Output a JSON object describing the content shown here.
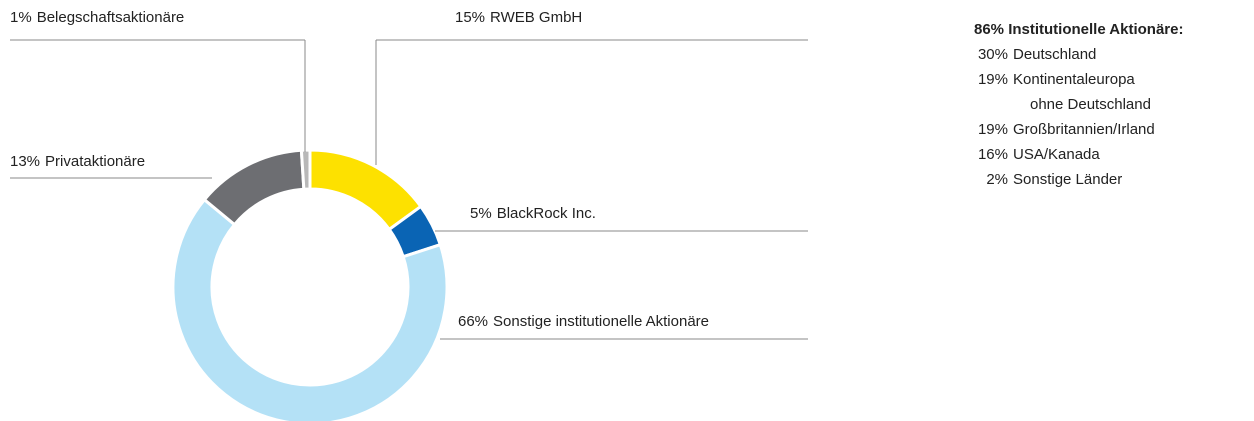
{
  "chart_data": {
    "type": "donut",
    "categories": [
      "RWEB GmbH",
      "BlackRock Inc.",
      "Sonstige institutionelle Aktionäre",
      "Privataktionäre",
      "Belegschaftsaktionäre"
    ],
    "values": [
      15,
      5,
      66,
      13,
      1
    ],
    "value_labels": [
      "15%",
      "5%",
      "66%",
      "13%",
      "1%"
    ],
    "colors": [
      "#fde100",
      "#0a64b4",
      "#b4e1f6",
      "#6d6e72",
      "#b8b8b8"
    ]
  },
  "breakdown": {
    "title": "86% Institutionelle Aktionäre:",
    "items": [
      {
        "value_label": "30%",
        "lines": [
          "Deutschland"
        ]
      },
      {
        "value_label": "19%",
        "lines": [
          "Kontinentaleuropa",
          "ohne Deutschland"
        ]
      },
      {
        "value_label": "19%",
        "lines": [
          "Großbritannien/Irland"
        ]
      },
      {
        "value_label": "16%",
        "lines": [
          "USA/Kanada"
        ]
      },
      {
        "value_label": "2%",
        "lines": [
          "Sonstige Länder"
        ]
      }
    ]
  }
}
